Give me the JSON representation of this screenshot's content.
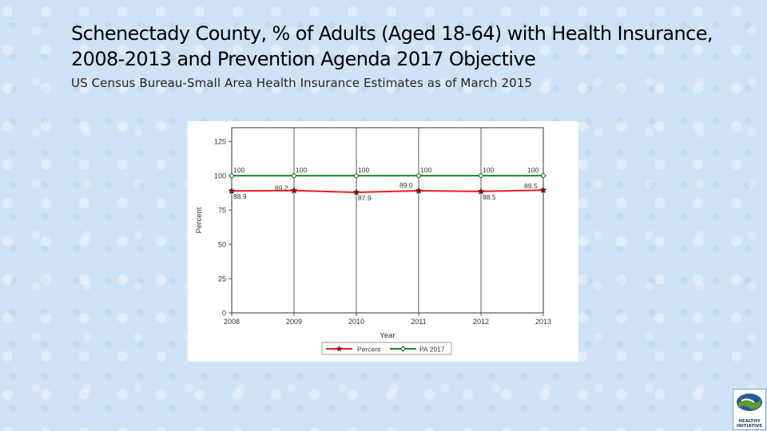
{
  "slide": {
    "title": "Schenectady County, % of Adults (Aged 18-64) with Health Insurance, 2008-2013 and Prevention Agenda 2017 Objective",
    "subtitle": "US Census Bureau-Small Area Health Insurance Estimates as of March 2015",
    "logo": {
      "line1": "HEALTHY",
      "line2": "INITIATIVE",
      "colors": {
        "green": "#5aa02c",
        "blue": "#2b5a9a"
      }
    }
  },
  "chart_data": {
    "type": "line",
    "title": "",
    "xlabel": "Year",
    "ylabel": "Percent",
    "x": [
      2008,
      2009,
      2010,
      2011,
      2012,
      2013
    ],
    "ylim": [
      0,
      135
    ],
    "yticks": [
      0,
      25,
      50,
      75,
      100,
      125
    ],
    "xticks": [
      "2008",
      "2009",
      "2010",
      "2011",
      "2012",
      "2013"
    ],
    "grid": "vertical",
    "legend": "bottom",
    "series": [
      {
        "name": "Percent",
        "values": [
          88.9,
          89.2,
          87.9,
          89.0,
          88.5,
          89.5
        ],
        "labels": [
          "88.9",
          "89.2",
          "87.9",
          "89.0",
          "88.5",
          "89.5"
        ],
        "color": "#e8201c",
        "marker": "star"
      },
      {
        "name": "PA 2017",
        "values": [
          100,
          100,
          100,
          100,
          100,
          100
        ],
        "labels": [
          "100",
          "100",
          "100",
          "100",
          "100",
          "100"
        ],
        "color": "#1a8a2a",
        "marker": "diamond"
      }
    ]
  }
}
